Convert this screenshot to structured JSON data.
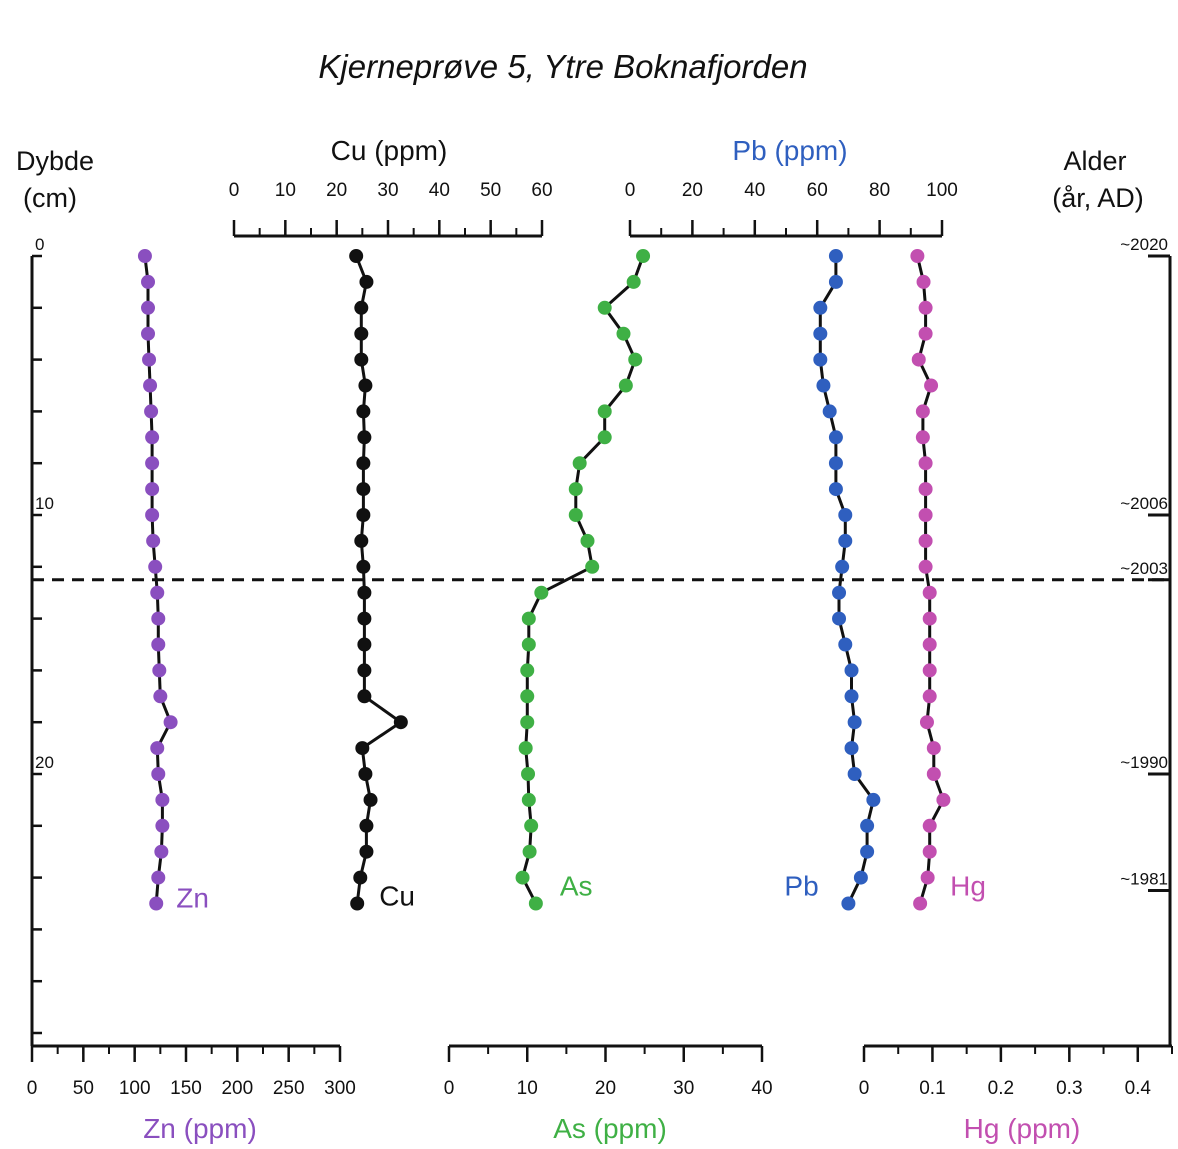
{
  "chart_data": {
    "type": "line",
    "title": "Kjerneprøve 5, Ytre Boknafjorden",
    "depth_axis": {
      "label_line1": "Dybde",
      "label_line2": "(cm)",
      "range": [
        0,
        30.5
      ],
      "tick_labels": [
        "0",
        "10",
        "20"
      ]
    },
    "age_axis": {
      "label_line1": "Alder",
      "label_line2": "(år, AD)",
      "ticks": [
        {
          "depth": 0,
          "label": "~2020"
        },
        {
          "depth": 10,
          "label": "~2006"
        },
        {
          "depth": 12.5,
          "label": "~2003"
        },
        {
          "depth": 20,
          "label": "~1990"
        },
        {
          "depth": 24.5,
          "label": "~1981"
        }
      ]
    },
    "divider_depth": 12.5,
    "depths": [
      0,
      1,
      2,
      3,
      4,
      5,
      6,
      7,
      8,
      9,
      10,
      11,
      12,
      13,
      14,
      15,
      16,
      17,
      18,
      19,
      20,
      21,
      22,
      23,
      24,
      25
    ],
    "series": [
      {
        "name": "Zn",
        "color": "#8a4fbf",
        "axis_label": "Zn (ppm)",
        "axis_ticks": [
          "0",
          "50",
          "100",
          "150",
          "200",
          "250",
          "300"
        ],
        "xlim": [
          0,
          300
        ],
        "values": [
          110,
          113,
          113,
          113,
          114,
          115,
          116,
          117,
          117,
          117,
          117,
          118,
          120,
          122,
          123,
          123,
          124,
          125,
          135,
          122,
          123,
          127,
          127,
          126,
          123,
          121
        ]
      },
      {
        "name": "Cu",
        "color": "#111111",
        "axis_label": "Cu (ppm)",
        "axis_ticks": [
          "0",
          "10",
          "20",
          "30",
          "40",
          "50",
          "60"
        ],
        "xlim": [
          0,
          60
        ],
        "values": [
          23.8,
          25.8,
          24.8,
          24.8,
          24.8,
          25.6,
          25.2,
          25.4,
          25.2,
          25.2,
          25.2,
          24.8,
          25.2,
          25.4,
          25.4,
          25.4,
          25.4,
          25.4,
          32.5,
          25.0,
          25.6,
          26.6,
          25.8,
          25.8,
          24.6,
          24.0
        ]
      },
      {
        "name": "As",
        "color": "#3fb045",
        "axis_label": "As (ppm)",
        "axis_ticks": [
          "0",
          "10",
          "20",
          "30",
          "40"
        ],
        "xlim": [
          0,
          40
        ],
        "values": [
          24.8,
          23.6,
          19.9,
          22.3,
          23.8,
          22.6,
          19.9,
          19.9,
          16.7,
          16.2,
          16.2,
          17.7,
          18.3,
          11.8,
          10.2,
          10.2,
          10.0,
          10.0,
          10.0,
          9.8,
          10.1,
          10.2,
          10.5,
          10.3,
          9.4,
          11.1
        ]
      },
      {
        "name": "Pb",
        "color": "#2f5fbf",
        "axis_label": "Pb (ppm)",
        "axis_ticks": [
          "0",
          "20",
          "40",
          "60",
          "80",
          "100"
        ],
        "xlim": [
          0,
          100
        ],
        "values": [
          66,
          66,
          61,
          61,
          61,
          62,
          64,
          66,
          66,
          66,
          69,
          69,
          68,
          67,
          67,
          69,
          71,
          71,
          72,
          71,
          72,
          78,
          76,
          76,
          74,
          70
        ]
      },
      {
        "name": "Hg",
        "color": "#c24fb0",
        "axis_label": "Hg (ppm)",
        "axis_ticks": [
          "0",
          "0.1",
          "0.2",
          "0.3",
          "0.4"
        ],
        "xlim": [
          0,
          0.45
        ],
        "values": [
          0.078,
          0.087,
          0.09,
          0.09,
          0.08,
          0.098,
          0.086,
          0.086,
          0.09,
          0.09,
          0.09,
          0.09,
          0.09,
          0.096,
          0.096,
          0.096,
          0.096,
          0.096,
          0.092,
          0.102,
          0.102,
          0.116,
          0.096,
          0.096,
          0.093,
          0.082
        ]
      }
    ]
  }
}
